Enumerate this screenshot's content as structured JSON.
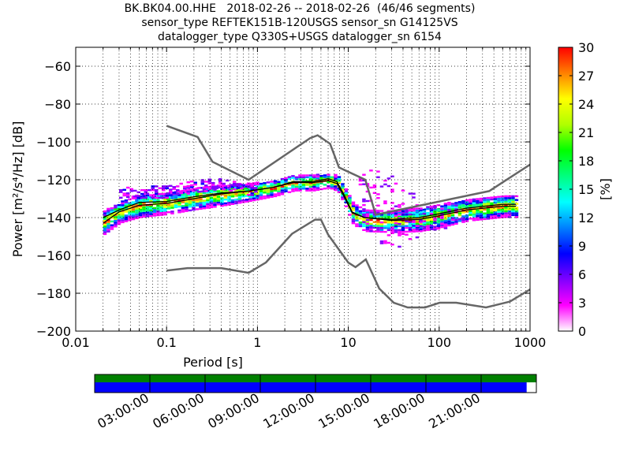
{
  "header": {
    "line1": "BK.BK04.00.HHE   2018-02-26 -- 2018-02-26  (46/46 segments)",
    "line2": "sensor_type REFTEK151B-120USGS sensor_sn G14125VS",
    "line3": "datalogger_type Q330S+USGS datalogger_sn 6154"
  },
  "chart_data": {
    "type": "heatmap",
    "xlabel": "Period [s]",
    "ylabel": "Power [m²/s⁴/Hz] [dB]",
    "x_scale": "log",
    "xlim": [
      0.01,
      1000
    ],
    "ylim": [
      -200,
      -50
    ],
    "x_ticks": [
      0.01,
      0.1,
      1,
      10,
      100,
      1000
    ],
    "x_tick_labels": [
      "0.01",
      "0.1",
      "1",
      "10",
      "100",
      "1000"
    ],
    "y_ticks": [
      -200,
      -180,
      -160,
      -140,
      -120,
      -100,
      -80,
      -60
    ],
    "y_tick_labels": [
      "−200",
      "−180",
      "−160",
      "−140",
      "−120",
      "−100",
      "−80",
      "−60"
    ],
    "grid": true,
    "colorbar": {
      "label": "[%]",
      "range": [
        0,
        30
      ],
      "ticks": [
        "0",
        "3",
        "6",
        "9",
        "12",
        "15",
        "18",
        "21",
        "24",
        "27",
        "30"
      ]
    },
    "noise_models": [
      {
        "name": "NHNM",
        "points": [
          [
            0.1,
            -91.5
          ],
          [
            0.22,
            -97.4
          ],
          [
            0.32,
            -110.5
          ],
          [
            0.8,
            -120
          ],
          [
            3.8,
            -98
          ],
          [
            4.6,
            -96.5
          ],
          [
            6.3,
            -101
          ],
          [
            7.9,
            -113.5
          ],
          [
            15.4,
            -120
          ],
          [
            20,
            -138.5
          ],
          [
            354.8,
            -126
          ],
          [
            1000,
            -112
          ]
        ]
      },
      {
        "name": "NLNM",
        "points": [
          [
            0.1,
            -168
          ],
          [
            0.17,
            -166.7
          ],
          [
            0.4,
            -166.7
          ],
          [
            0.8,
            -169.2
          ],
          [
            1.24,
            -163.7
          ],
          [
            2.4,
            -148.6
          ],
          [
            4.3,
            -141.1
          ],
          [
            5,
            -141.1
          ],
          [
            6,
            -149
          ],
          [
            10,
            -163.8
          ],
          [
            12,
            -166.2
          ],
          [
            15.6,
            -162.1
          ],
          [
            21.9,
            -177.5
          ],
          [
            31.6,
            -185
          ],
          [
            45,
            -187.5
          ],
          [
            70,
            -187.5
          ],
          [
            101,
            -185
          ],
          [
            154,
            -185
          ],
          [
            328,
            -187.5
          ],
          [
            600,
            -184.4
          ],
          [
            1000,
            -178
          ]
        ]
      }
    ],
    "mode": {
      "name": "mode",
      "points": [
        [
          0.02,
          -143
        ],
        [
          0.03,
          -137
        ],
        [
          0.05,
          -133.5
        ],
        [
          0.1,
          -132.5
        ],
        [
          0.2,
          -130
        ],
        [
          0.4,
          -127.5
        ],
        [
          0.8,
          -126
        ],
        [
          1.5,
          -124
        ],
        [
          2.5,
          -121
        ],
        [
          4,
          -121
        ],
        [
          6,
          -119.5
        ],
        [
          7.5,
          -121
        ],
        [
          9,
          -128
        ],
        [
          11,
          -137
        ],
        [
          15,
          -140
        ],
        [
          30,
          -141
        ],
        [
          60,
          -140
        ],
        [
          100,
          -138
        ],
        [
          200,
          -135
        ],
        [
          500,
          -133
        ],
        [
          700,
          -133
        ]
      ]
    },
    "mean": {
      "name": "mean",
      "points": [
        [
          0.02,
          -140
        ],
        [
          0.03,
          -136
        ],
        [
          0.05,
          -132
        ],
        [
          0.1,
          -131.5
        ],
        [
          0.2,
          -129
        ],
        [
          0.4,
          -127
        ],
        [
          0.8,
          -126
        ],
        [
          1.5,
          -124
        ],
        [
          2.5,
          -121.5
        ],
        [
          4,
          -121.5
        ],
        [
          6,
          -120.5
        ],
        [
          7.5,
          -122
        ],
        [
          9,
          -129
        ],
        [
          11,
          -137.5
        ],
        [
          15,
          -140
        ],
        [
          30,
          -141.5
        ],
        [
          60,
          -141
        ],
        [
          100,
          -139
        ],
        [
          200,
          -136
        ],
        [
          500,
          -134
        ],
        [
          700,
          -134
        ]
      ]
    },
    "density_bands": [
      {
        "period": [
          0.02,
          0.03,
          0.05,
          0.1,
          0.2,
          0.4,
          0.8,
          1.5,
          2.5,
          4,
          6,
          7.5,
          9,
          11,
          15,
          30,
          60,
          100,
          200,
          500,
          700
        ],
        "center": [
          -142,
          -136.5,
          -133,
          -132,
          -129.5,
          -127.5,
          -126,
          -124,
          -121,
          -121,
          -120,
          -121.5,
          -128.5,
          -137.5,
          -141,
          -141.5,
          -140.5,
          -138.5,
          -135.5,
          -133.5,
          -133.5
        ],
        "half_width": [
          5,
          4.5,
          5,
          4.5,
          4.5,
          4.5,
          3.5,
          3,
          3,
          3,
          2.5,
          3,
          3.5,
          4.5,
          4.5,
          4.5,
          5,
          5,
          4.5,
          4.5,
          4.5
        ]
      }
    ],
    "outlier_band": {
      "period": [
        13,
        20,
        30,
        45,
        60,
        100,
        150
      ],
      "upper": [
        -117,
        -113,
        -118,
        -125,
        -130,
        -134,
        -132
      ],
      "lower": [
        -143,
        -152,
        -156,
        -153,
        -150,
        -147,
        -144
      ]
    },
    "upper_cloud": {
      "period": [
        0.03,
        0.05,
        0.1,
        0.2,
        0.35,
        0.6,
        1.0
      ],
      "center": [
        -127,
        -126,
        -126,
        -123,
        -122,
        -124,
        -125
      ]
    },
    "colorbar_palette": [
      "#ffffff",
      "#ff00ff",
      "#8000ff",
      "#0000ff",
      "#0080ff",
      "#00ffff",
      "#00ff80",
      "#00ff00",
      "#b0ff00",
      "#ffff00",
      "#ff8000",
      "#ff0000"
    ]
  },
  "timeline": {
    "labels": [
      "03:00:00",
      "06:00:00",
      "09:00:00",
      "12:00:00",
      "15:00:00",
      "18:00:00",
      "21:00:00"
    ],
    "top_bar_color": "#008000",
    "bottom_bar_color": "#0000ff",
    "coverage_fraction": 0.978
  }
}
